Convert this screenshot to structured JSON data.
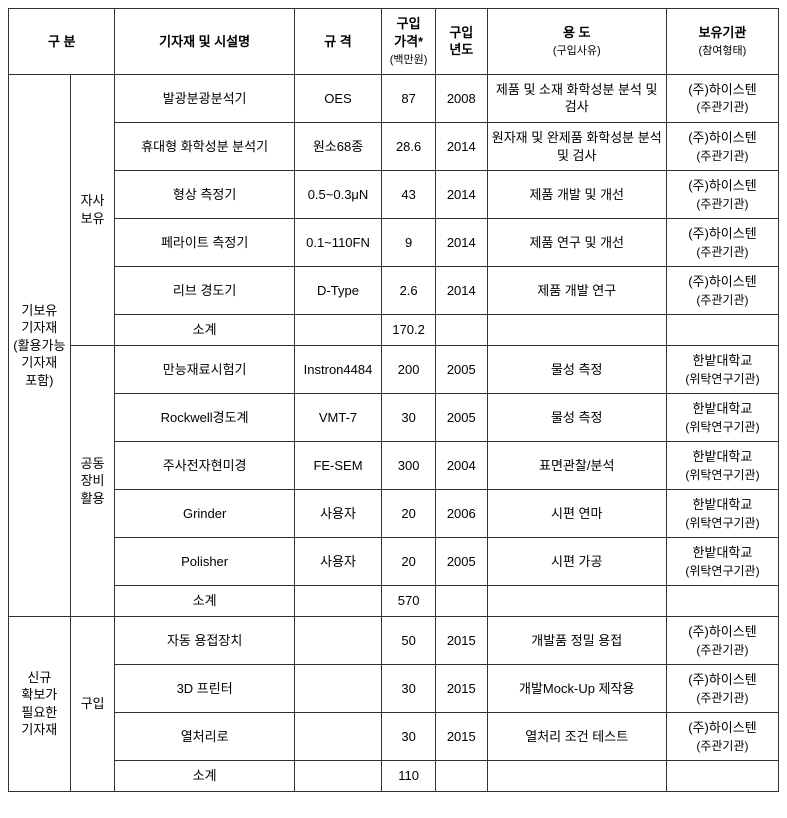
{
  "headers": {
    "h1": "구 분",
    "h2": "기자재 및 시설명",
    "h3": "규 격",
    "h4_top": "구입\n가격*",
    "h4_sub": "(백만원)",
    "h5_top": "구입\n년도",
    "h6_top": "용 도",
    "h6_sub": "(구입사유)",
    "h7_top": "보유기관",
    "h7_sub": "(참여형태)"
  },
  "group1": {
    "label": "기보유\n기자재\n(활용가능\n기자재\n포함)",
    "sub1": {
      "label": "자사\n보유",
      "rows": [
        {
          "name": "발광분광분석기",
          "spec": "OES",
          "price": "87",
          "year": "2008",
          "use": "제품 및 소재 화학성분 분석 및 검사",
          "inst_t": "(주)하이스텐",
          "inst_b": "(주관기관)"
        },
        {
          "name": "휴대형 화학성분 분석기",
          "spec": "원소68종",
          "price": "28.6",
          "year": "2014",
          "use": "원자재 및 완제품 화학성분 분석 및 검사",
          "inst_t": "(주)하이스텐",
          "inst_b": "(주관기관)"
        },
        {
          "name": "형상 측정기",
          "spec": "0.5~0.3μN",
          "price": "43",
          "year": "2014",
          "use": "제품 개발 및 개선",
          "inst_t": "(주)하이스텐",
          "inst_b": "(주관기관)"
        },
        {
          "name": "페라이트 측정기",
          "spec": "0.1~110FN",
          "price": "9",
          "year": "2014",
          "use": "제품 연구 및 개선",
          "inst_t": "(주)하이스텐",
          "inst_b": "(주관기관)"
        },
        {
          "name": "리브 경도기",
          "spec": "D-Type",
          "price": "2.6",
          "year": "2014",
          "use": "제품 개발 연구",
          "inst_t": "(주)하이스텐",
          "inst_b": "(주관기관)"
        }
      ],
      "subtotal": {
        "label": "소계",
        "price": "170.2"
      }
    },
    "sub2": {
      "label": "공동\n장비\n활용",
      "rows": [
        {
          "name": "만능재료시험기",
          "spec": "Instron4484",
          "price": "200",
          "year": "2005",
          "use": "물성 측정",
          "inst_t": "한밭대학교",
          "inst_b": "(위탁연구기관)"
        },
        {
          "name": "Rockwell경도계",
          "spec": "VMT-7",
          "price": "30",
          "year": "2005",
          "use": "물성 측정",
          "inst_t": "한밭대학교",
          "inst_b": "(위탁연구기관)"
        },
        {
          "name": "주사전자현미경",
          "spec": "FE-SEM",
          "price": "300",
          "year": "2004",
          "use": "표면관찰/분석",
          "inst_t": "한밭대학교",
          "inst_b": "(위탁연구기관)"
        },
        {
          "name": "Grinder",
          "spec": "사용자",
          "price": "20",
          "year": "2006",
          "use": "시편 연마",
          "inst_t": "한밭대학교",
          "inst_b": "(위탁연구기관)"
        },
        {
          "name": "Polisher",
          "spec": "사용자",
          "price": "20",
          "year": "2005",
          "use": "시편 가공",
          "inst_t": "한밭대학교",
          "inst_b": "(위탁연구기관)"
        }
      ],
      "subtotal": {
        "label": "소계",
        "price": "570"
      }
    }
  },
  "group2": {
    "label": "신규\n확보가\n필요한\n기자재",
    "sub": {
      "label": "구입",
      "rows": [
        {
          "name": "자동 용접장치",
          "spec": "",
          "price": "50",
          "year": "2015",
          "use": "개발품 정밀 용접",
          "inst_t": "(주)하이스텐",
          "inst_b": "(주관기관)"
        },
        {
          "name": "3D 프린터",
          "spec": "",
          "price": "30",
          "year": "2015",
          "use": "개발Mock-Up 제작용",
          "inst_t": "(주)하이스텐",
          "inst_b": "(주관기관)"
        },
        {
          "name": "열처리로",
          "spec": "",
          "price": "30",
          "year": "2015",
          "use": "열처리 조건 테스트",
          "inst_t": "(주)하이스텐",
          "inst_b": "(주관기관)"
        }
      ],
      "subtotal": {
        "label": "소계",
        "price": "110"
      }
    }
  }
}
